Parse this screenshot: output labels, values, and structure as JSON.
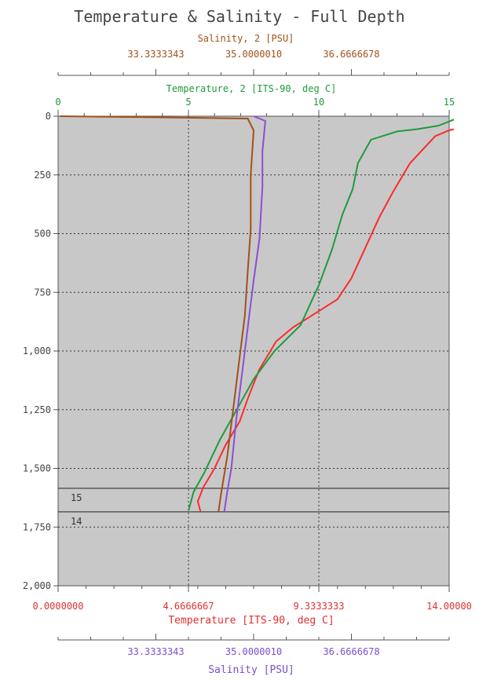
{
  "chart_data": {
    "type": "line",
    "title": "Temperature & Salinity - Full Depth",
    "y_axis": {
      "label": "",
      "range": [
        0,
        2000
      ],
      "inverted": true,
      "ticks": [
        0,
        250,
        500,
        750,
        1000,
        1250,
        1500,
        1750,
        2000
      ],
      "tick_labels": [
        "0",
        "250",
        "500",
        "750",
        "1,000",
        "1,250",
        "1,500",
        "1,750",
        "2,000"
      ],
      "grid": true
    },
    "axes": {
      "top_salinity2": {
        "label": "Salinity, 2 [PSU]",
        "range": [
          31.6666676,
          38.3333344
        ],
        "tick_labels": [
          {
            "v": 33.3333343,
            "t": "33.3333343"
          },
          {
            "v": 35.000001,
            "t": "35.0000010"
          },
          {
            "v": 36.6666678,
            "t": "36.6666678"
          }
        ]
      },
      "top_temperature2": {
        "label": "Temperature, 2 [ITS-90, deg C]",
        "range": [
          0,
          15
        ],
        "tick_labels": [
          {
            "v": 0,
            "t": "0"
          },
          {
            "v": 5,
            "t": "5"
          },
          {
            "v": 10,
            "t": "10"
          },
          {
            "v": 15,
            "t": "15"
          }
        ]
      },
      "bottom_temperature": {
        "label": "Temperature [ITS-90, deg C]",
        "range": [
          0,
          14
        ],
        "tick_labels": [
          {
            "v": 0,
            "t": "0.0000000"
          },
          {
            "v": 4.6666667,
            "t": "4.6666667"
          },
          {
            "v": 9.3333333,
            "t": "9.3333333"
          },
          {
            "v": 14,
            "t": "14.00000"
          }
        ]
      },
      "bottom_salinity": {
        "label": "Salinity [PSU]",
        "range": [
          31.6666676,
          38.3333344
        ],
        "tick_labels": [
          {
            "v": 33.3333343,
            "t": "33.3333343"
          },
          {
            "v": 35.000001,
            "t": "35.0000010"
          },
          {
            "v": 36.6666678,
            "t": "36.6666678"
          }
        ]
      }
    },
    "markers": [
      {
        "depth": 1585,
        "label": "15"
      },
      {
        "depth": 1685,
        "label": "14"
      }
    ],
    "series": [
      {
        "axis": "bottom_temperature",
        "color": "#ff2a2a",
        "points": [
          [
            15.5,
            0
          ],
          [
            14.8,
            40
          ],
          [
            14.0,
            60
          ],
          [
            13.5,
            85
          ],
          [
            12.6,
            200
          ],
          [
            12.0,
            320
          ],
          [
            11.5,
            430
          ],
          [
            11.0,
            560
          ],
          [
            10.5,
            690
          ],
          [
            10.0,
            780
          ],
          [
            9.2,
            840
          ],
          [
            8.4,
            900
          ],
          [
            7.8,
            960
          ],
          [
            7.2,
            1080
          ],
          [
            6.8,
            1200
          ],
          [
            6.5,
            1300
          ],
          [
            6.0,
            1400
          ],
          [
            5.6,
            1500
          ],
          [
            5.2,
            1580
          ],
          [
            5.0,
            1640
          ],
          [
            5.1,
            1685
          ]
        ]
      },
      {
        "axis": "top_temperature2",
        "color": "#1f9a3c",
        "points": [
          [
            15.5,
            0
          ],
          [
            14.6,
            40
          ],
          [
            13.8,
            55
          ],
          [
            13.0,
            65
          ],
          [
            12.0,
            100
          ],
          [
            11.5,
            200
          ],
          [
            11.3,
            310
          ],
          [
            10.9,
            420
          ],
          [
            10.5,
            570
          ],
          [
            10.0,
            720
          ],
          [
            9.3,
            890
          ],
          [
            8.3,
            1000
          ],
          [
            7.5,
            1120
          ],
          [
            6.9,
            1240
          ],
          [
            6.2,
            1380
          ],
          [
            5.6,
            1520
          ],
          [
            5.2,
            1600
          ],
          [
            5.0,
            1680
          ]
        ]
      },
      {
        "axis": "bottom_salinity",
        "color": "#8a4fd6",
        "points": [
          [
            35.0,
            0
          ],
          [
            35.2,
            20
          ],
          [
            35.15,
            150
          ],
          [
            35.15,
            300
          ],
          [
            35.1,
            520
          ],
          [
            35.0,
            700
          ],
          [
            34.9,
            900
          ],
          [
            34.8,
            1100
          ],
          [
            34.7,
            1300
          ],
          [
            34.62,
            1500
          ],
          [
            34.55,
            1600
          ],
          [
            34.5,
            1685
          ]
        ]
      },
      {
        "axis": "top_salinity2",
        "color": "#a0521c",
        "points": [
          [
            31.7,
            0
          ],
          [
            33.5,
            5
          ],
          [
            34.9,
            10
          ],
          [
            35.0,
            60
          ],
          [
            34.95,
            250
          ],
          [
            34.95,
            480
          ],
          [
            34.9,
            660
          ],
          [
            34.85,
            850
          ],
          [
            34.75,
            1050
          ],
          [
            34.65,
            1250
          ],
          [
            34.55,
            1450
          ],
          [
            34.45,
            1600
          ],
          [
            34.4,
            1685
          ]
        ]
      }
    ]
  }
}
